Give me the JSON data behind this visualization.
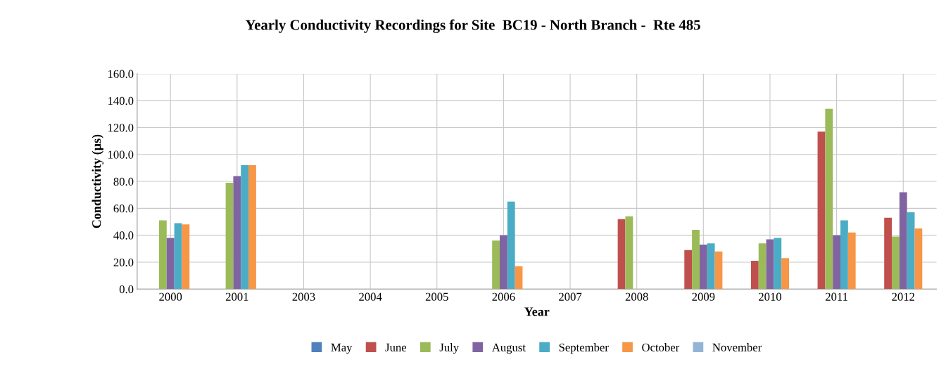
{
  "chart_data": {
    "type": "bar",
    "title": "Yearly Conductivity Recordings for Site  BC19 - North Branch -  Rte 485",
    "xlabel": "Year",
    "ylabel": "Conductivity (µs)",
    "categories": [
      "2000",
      "2001",
      "2003",
      "2004",
      "2005",
      "2006",
      "2007",
      "2008",
      "2009",
      "2010",
      "2011",
      "2012"
    ],
    "series": [
      {
        "name": "May",
        "color": "#4f81bd",
        "values": [
          null,
          null,
          null,
          null,
          null,
          null,
          null,
          null,
          null,
          null,
          null,
          null
        ]
      },
      {
        "name": "June",
        "color": "#c0504d",
        "values": [
          null,
          null,
          null,
          null,
          null,
          null,
          null,
          52,
          29,
          21,
          117,
          53
        ]
      },
      {
        "name": "July",
        "color": "#9bbb59",
        "values": [
          51,
          79,
          null,
          null,
          null,
          36,
          null,
          54,
          44,
          34,
          134,
          39
        ]
      },
      {
        "name": "August",
        "color": "#8064a2",
        "values": [
          38,
          84,
          null,
          null,
          null,
          40,
          null,
          null,
          33,
          37,
          40,
          72
        ]
      },
      {
        "name": "September",
        "color": "#4bacc6",
        "values": [
          49,
          92,
          null,
          null,
          null,
          65,
          null,
          null,
          34,
          38,
          51,
          57
        ]
      },
      {
        "name": "October",
        "color": "#f79646",
        "values": [
          48,
          92,
          null,
          null,
          null,
          17,
          null,
          null,
          28,
          23,
          42,
          45
        ]
      },
      {
        "name": "November",
        "color": "#95b3d7",
        "values": [
          null,
          null,
          null,
          null,
          null,
          null,
          null,
          null,
          null,
          null,
          null,
          null
        ]
      }
    ],
    "ylim": [
      0,
      160
    ],
    "yticks": [
      {
        "value": 0,
        "label": "0.0"
      },
      {
        "value": 20,
        "label": "20.0"
      },
      {
        "value": 40,
        "label": "40.0"
      },
      {
        "value": 60,
        "label": "60.0"
      },
      {
        "value": 80,
        "label": "80.0"
      },
      {
        "value": 100,
        "label": "100.0"
      },
      {
        "value": 120,
        "label": "120.0"
      },
      {
        "value": 140,
        "label": "140.0"
      },
      {
        "value": 160,
        "label": "160.0"
      }
    ],
    "grid": true,
    "legend": "bottom"
  }
}
